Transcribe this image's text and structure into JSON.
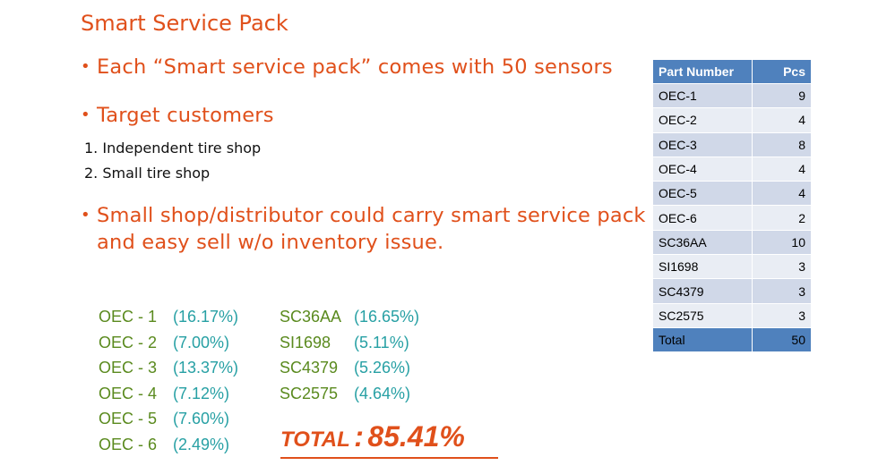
{
  "slide": {
    "title": "Smart Service Pack",
    "bullets": [
      "Each “Smart service pack” comes with 50 sensors",
      "Target customers",
      "Small shop/distributor could carry smart service pack and easy sell w/o inventory issue."
    ],
    "customers": [
      "1. Independent tire shop",
      "2. Small tire shop"
    ],
    "bullet_glyph": "•"
  },
  "percentages": {
    "col1": [
      {
        "name": "OEC - 1",
        "pct": "(16.17%)"
      },
      {
        "name": "OEC - 2",
        "pct": "(7.00%)"
      },
      {
        "name": "OEC - 3",
        "pct": "(13.37%)"
      },
      {
        "name": "OEC - 4",
        "pct": "(7.12%)"
      },
      {
        "name": "OEC - 5",
        "pct": "(7.60%)"
      },
      {
        "name": "OEC - 6",
        "pct": "(2.49%)"
      }
    ],
    "col2": [
      {
        "name": "SC36AA",
        "pct": "(16.65%)"
      },
      {
        "name": "SI1698",
        "pct": "(5.11%)"
      },
      {
        "name": "SC4379",
        "pct": "(5.26%)"
      },
      {
        "name": "SC2575",
        "pct": "(4.64%)"
      }
    ],
    "total_label": "TOTAL",
    "total_colon": ":",
    "total_value": "85.41%"
  },
  "parts_table": {
    "headers": [
      "Part Number",
      "Pcs"
    ],
    "rows": [
      [
        "OEC-1",
        "9"
      ],
      [
        "OEC-2",
        "4"
      ],
      [
        "OEC-3",
        "8"
      ],
      [
        "OEC-4",
        "4"
      ],
      [
        "OEC-5",
        "4"
      ],
      [
        "OEC-6",
        "2"
      ],
      [
        "SC36AA",
        "10"
      ],
      [
        "SI1698",
        "3"
      ],
      [
        "SC4379",
        "3"
      ],
      [
        "SC2575",
        "3"
      ]
    ],
    "total": [
      "Total",
      "50"
    ]
  },
  "colors": {
    "accent": "#e0501b",
    "part_name": "#5a8a1e",
    "percent": "#27a0a4",
    "table_header": "#4f81bd"
  }
}
